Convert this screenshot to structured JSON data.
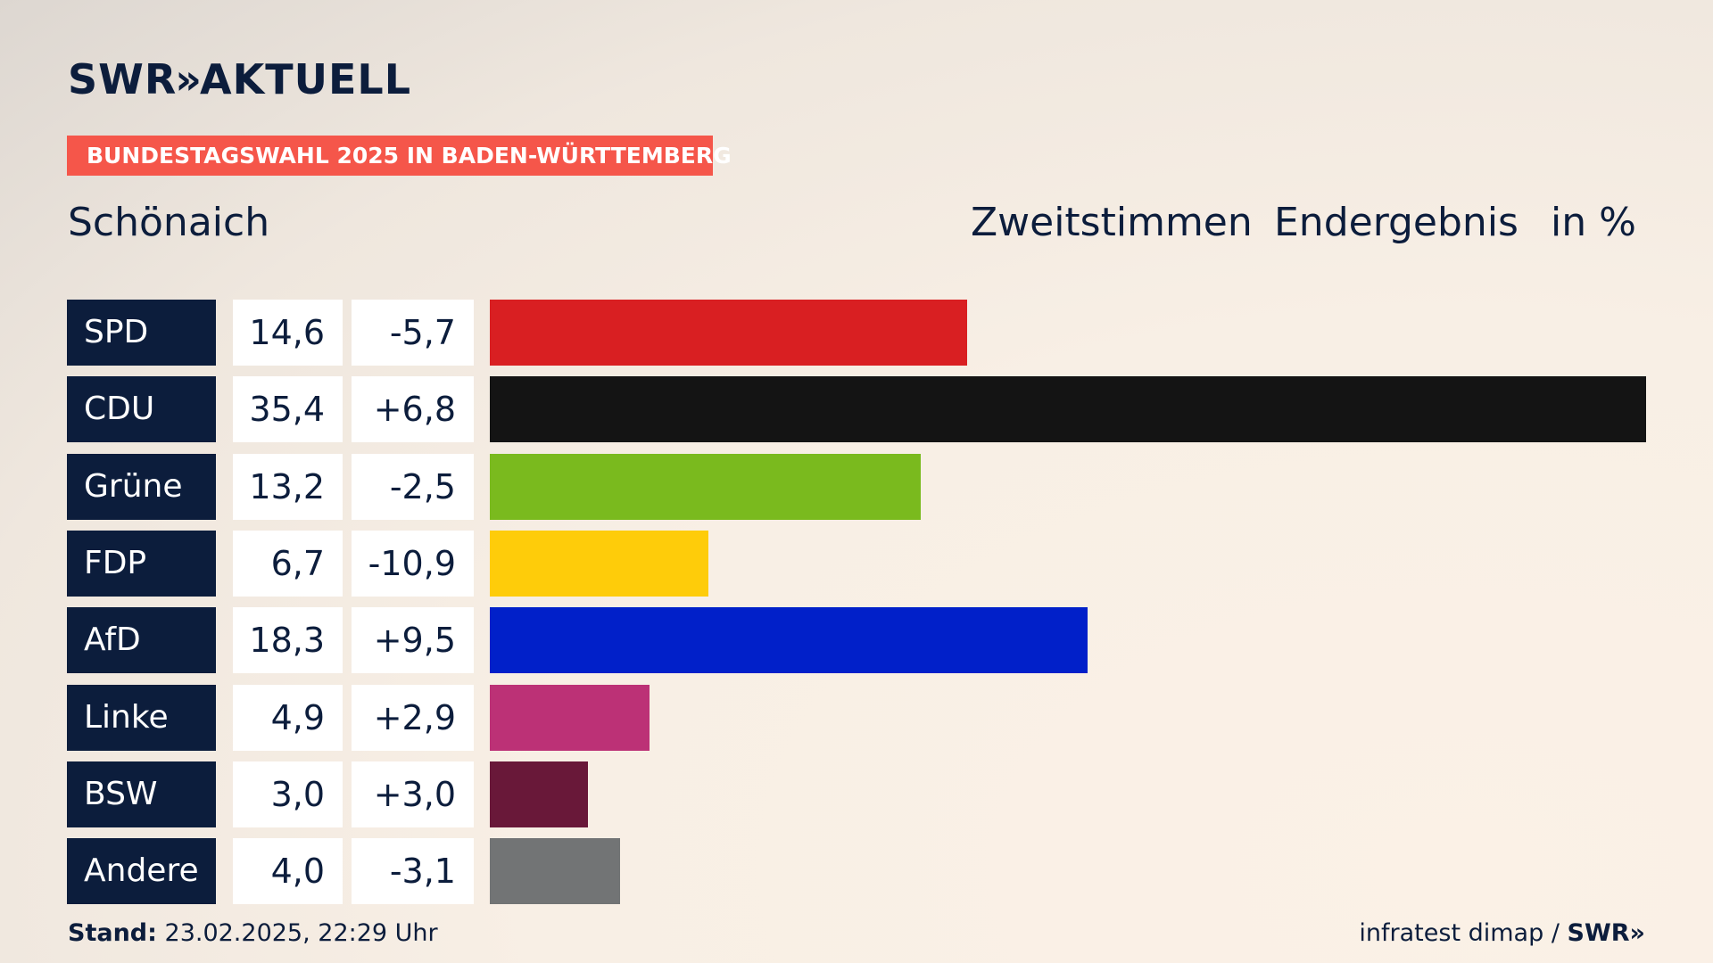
{
  "header": {
    "logo": "SWR",
    "logo_chevrons": "»",
    "logo_suffix": "AKTUELL",
    "tag": "BUNDESTAGSWAHL 2025 IN BADEN-WÜRTTEMBERG",
    "place": "Schönaich",
    "vote_type": "Zweitstimmen",
    "result_type": "Endergebnis",
    "unit": "in %"
  },
  "footer": {
    "stand_label": "Stand:",
    "stand_value": "23.02.2025, 22:29 Uhr",
    "source": "infratest dimap /",
    "source_logo": "SWR»"
  },
  "chart_data": {
    "type": "bar",
    "orientation": "horizontal",
    "categories": [
      "SPD",
      "CDU",
      "Grüne",
      "FDP",
      "AfD",
      "Linke",
      "BSW",
      "Andere"
    ],
    "values": [
      14.6,
      35.4,
      13.2,
      6.7,
      18.3,
      4.9,
      3.0,
      4.0
    ],
    "value_labels": [
      "14,6",
      "35,4",
      "13,2",
      "6,7",
      "18,3",
      "4,9",
      "3,0",
      "4,0"
    ],
    "diffs": [
      -5.7,
      6.8,
      -2.5,
      -10.9,
      9.5,
      2.9,
      3.0,
      -3.1
    ],
    "diff_labels": [
      "-5,7",
      "+6,8",
      "-2,5",
      "-10,9",
      "+9,5",
      "+2,9",
      "+3,0",
      "-3,1"
    ],
    "colors": [
      "#d91f22",
      "#141414",
      "#7aba1e",
      "#fecc0a",
      "#0120c9",
      "#bc3176",
      "#691839",
      "#727475"
    ],
    "xlim": [
      0,
      35.4
    ],
    "title": "",
    "xlabel": "",
    "ylabel": ""
  }
}
